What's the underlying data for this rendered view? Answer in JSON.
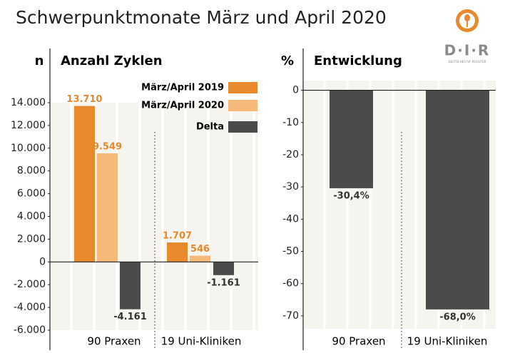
{
  "title": "Schwerpunktmonate März und April 2020",
  "logo": {
    "text": "D·I·R",
    "subtext": "DEUTSCHES IVF REGISTER"
  },
  "chart_data": [
    {
      "type": "bar",
      "axis_unit": "n",
      "title": "Anzahl Zyklen",
      "categories": [
        "90 Praxen",
        "19 Uni-Kliniken"
      ],
      "series": [
        {
          "name": "März/April 2019",
          "color": "#e8892e",
          "values": [
            13710,
            1707
          ],
          "value_labels": [
            "13.710",
            "1.707"
          ]
        },
        {
          "name": "März/April 2020",
          "color": "#f6b97a",
          "values": [
            9549,
            546
          ],
          "value_labels": [
            "9.549",
            "546"
          ]
        },
        {
          "name": "Delta",
          "color": "#4b4b4b",
          "values": [
            -4161,
            -1161
          ],
          "value_labels": [
            "-4.161",
            "-1.161"
          ]
        }
      ],
      "ylim": [
        -6000,
        14000
      ],
      "yticks": [
        {
          "value": 14000,
          "label": "14.000"
        },
        {
          "value": 12000,
          "label": "12.000"
        },
        {
          "value": 10000,
          "label": "10.000"
        },
        {
          "value": 8000,
          "label": "8.000"
        },
        {
          "value": 6000,
          "label": "6.000"
        },
        {
          "value": 4000,
          "label": "4.000"
        },
        {
          "value": 2000,
          "label": "2.000"
        },
        0,
        {
          "value": -2000,
          "label": "-2.000"
        },
        {
          "value": -4000,
          "label": "-4.000"
        },
        {
          "value": -6000,
          "label": "-6.000"
        }
      ]
    },
    {
      "type": "bar",
      "axis_unit": "%",
      "title": "Entwicklung",
      "categories": [
        "90 Praxen",
        "19 Uni-Kliniken"
      ],
      "series": [
        {
          "color": "#4b4b4b",
          "values": [
            -30.4,
            -68.0
          ],
          "value_labels": [
            "-30,4%",
            "-68,0%"
          ]
        }
      ],
      "ylim": [
        -74,
        3
      ],
      "yticks": [
        0,
        -10,
        -20,
        -30,
        -40,
        -50,
        -60,
        -70
      ]
    }
  ]
}
